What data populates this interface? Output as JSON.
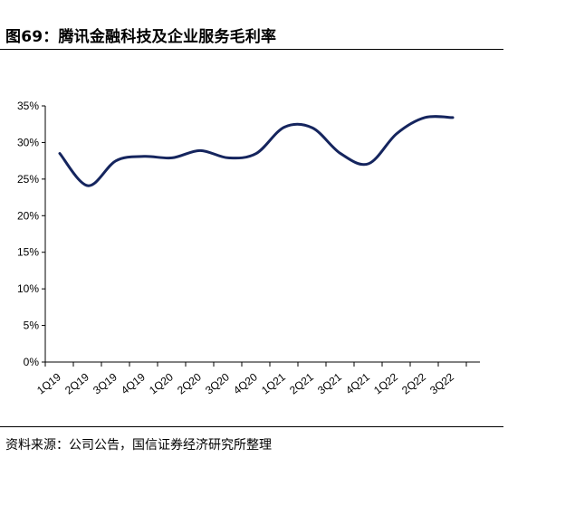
{
  "figure": {
    "title": "图69：腾讯金融科技及企业服务毛利率",
    "source": "资料来源：公司公告，国信证券经济研究所整理"
  },
  "colors": {
    "line": "#15255e",
    "axis": "#000000"
  },
  "chart_data": {
    "type": "line",
    "title": "",
    "xlabel": "",
    "ylabel": "",
    "categories": [
      "1Q19",
      "2Q19",
      "3Q19",
      "4Q19",
      "1Q20",
      "2Q20",
      "3Q20",
      "4Q20",
      "1Q21",
      "2Q21",
      "3Q21",
      "4Q21",
      "1Q22",
      "2Q22",
      "3Q22"
    ],
    "series": [
      {
        "values": [
          28.5,
          24.1,
          27.5,
          28.1,
          27.9,
          28.9,
          27.9,
          28.5,
          32.1,
          32.0,
          28.5,
          27.1,
          31.2,
          33.4,
          33.4
        ]
      }
    ],
    "ylim": [
      0,
      35
    ],
    "yticks": [
      0,
      5,
      10,
      15,
      20,
      25,
      30,
      35
    ],
    "ytick_labels": [
      "0%",
      "5%",
      "10%",
      "15%",
      "20%",
      "25%",
      "30%",
      "35%"
    ],
    "grid": false,
    "legend": "none"
  }
}
